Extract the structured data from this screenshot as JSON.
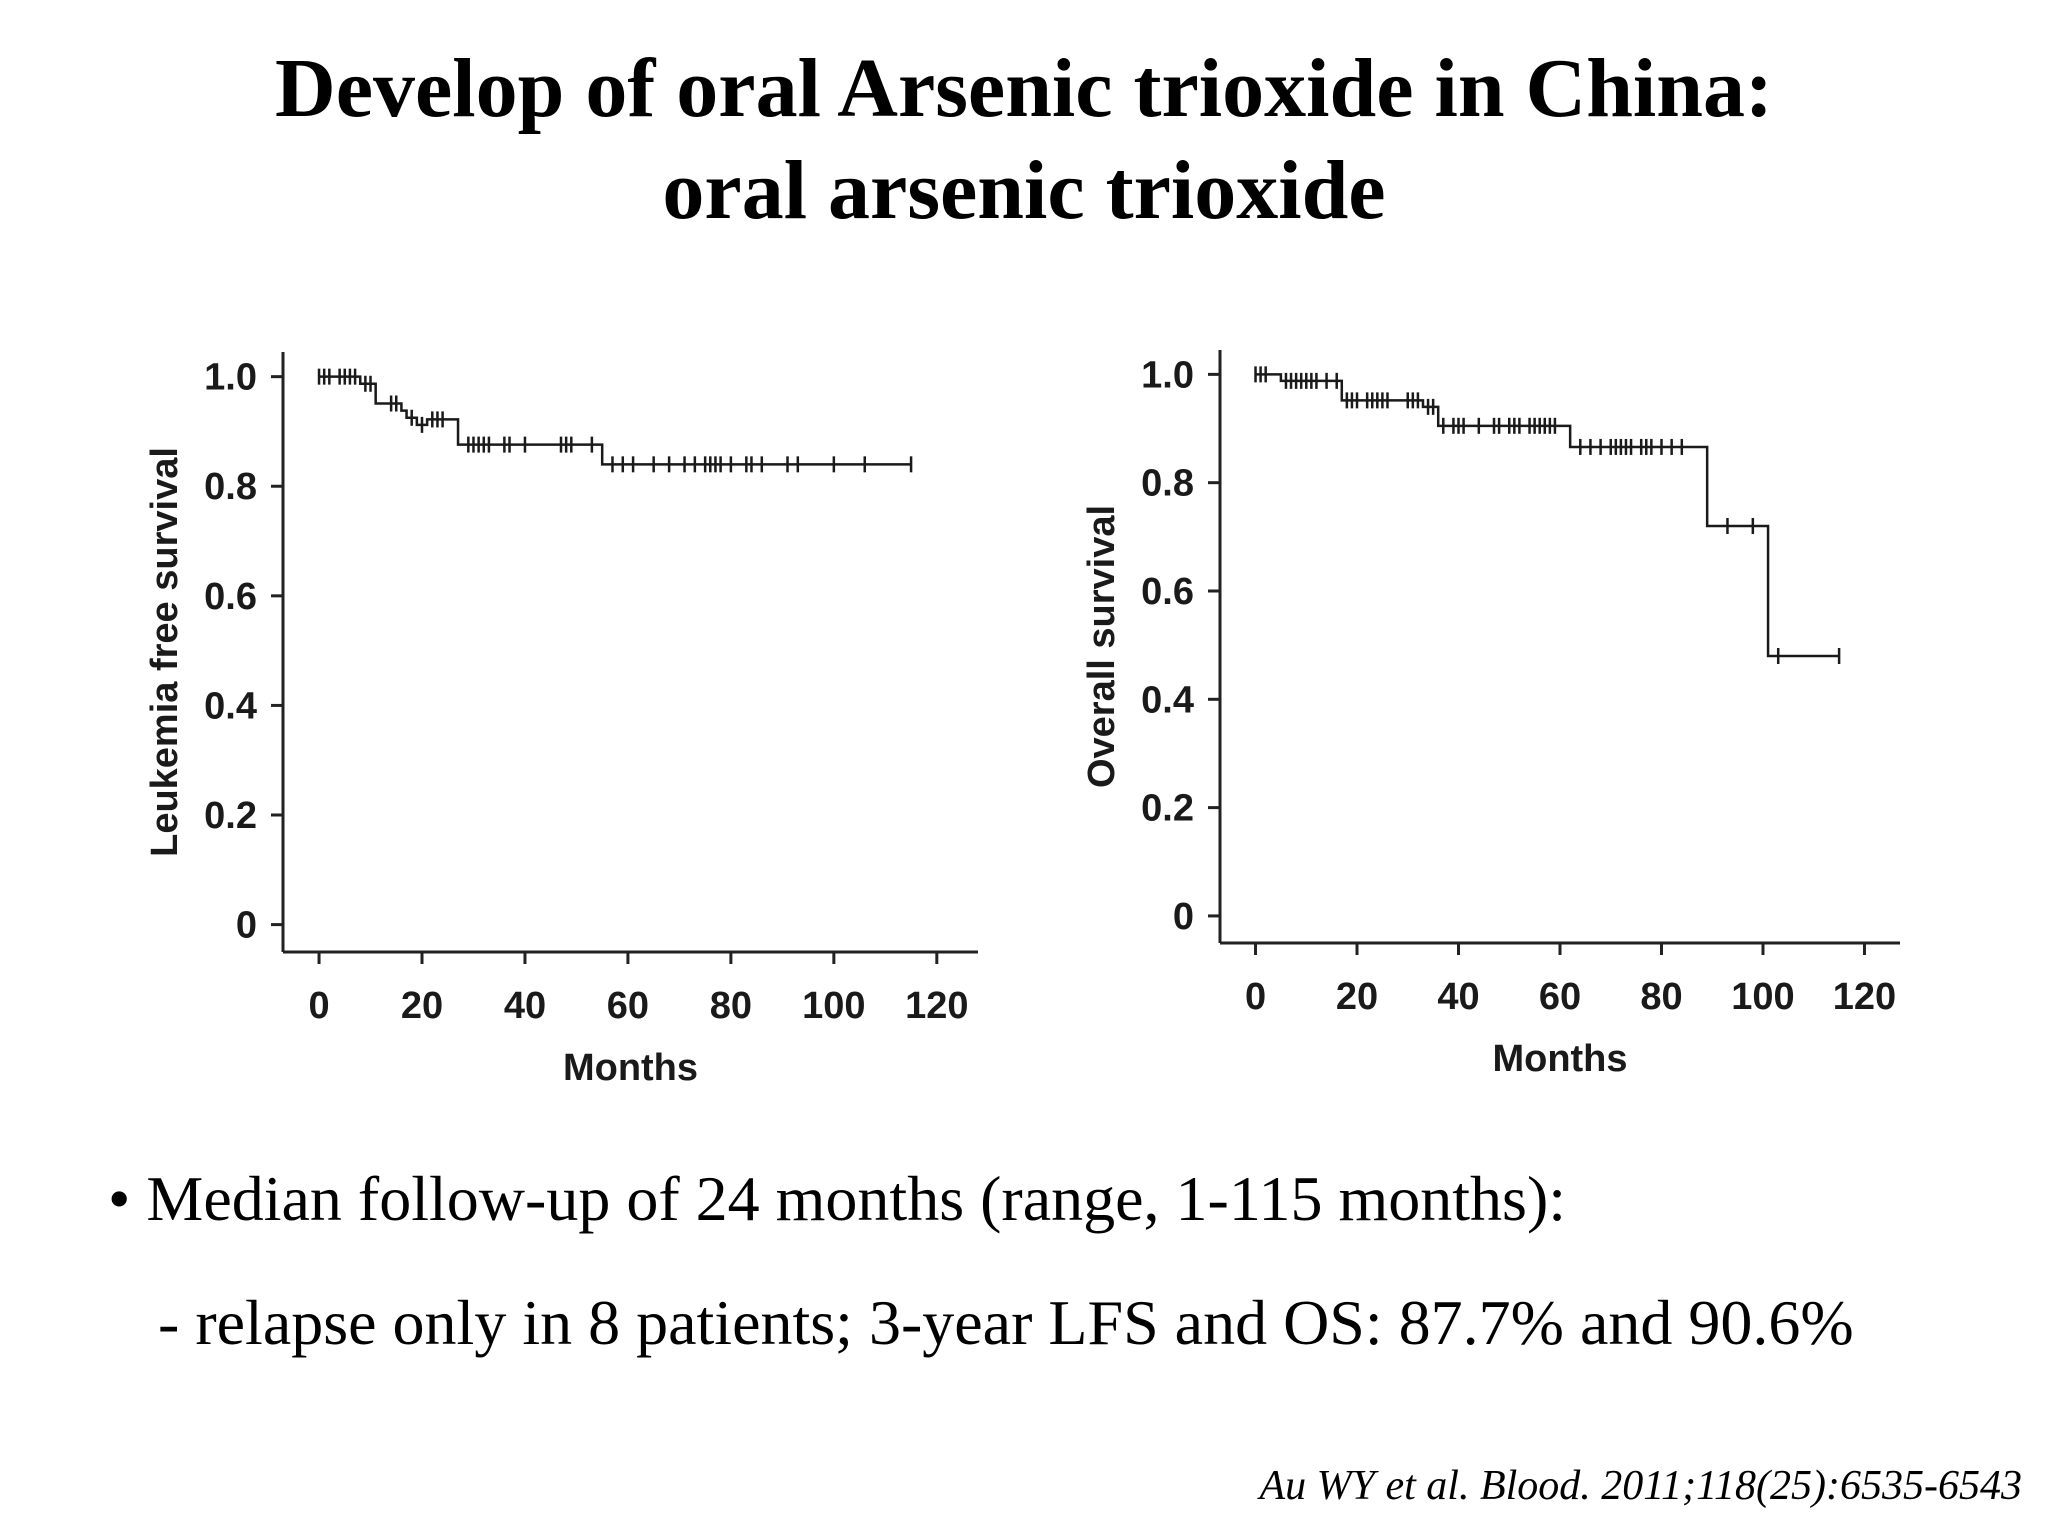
{
  "slide": {
    "title": "Develop of oral Arsenic trioxide in China: oral arsenic trioxide",
    "bullets": [
      "• Median follow-up of 24 months (range, 1-115 months):",
      "- relapse only in 8 patients; 3-year LFS and OS: 87.7% and 90.6%"
    ],
    "citation": "Au WY et al. Blood. 2011;118(25):6535-6543"
  },
  "chart_data": [
    {
      "type": "line",
      "subtype": "kaplan-meier",
      "title": "",
      "xlabel": "Months",
      "ylabel": "Leukemia free survival",
      "xlim": [
        -7,
        128
      ],
      "ylim": [
        -0.05,
        1.045
      ],
      "xticks": [
        0,
        20,
        40,
        60,
        80,
        100,
        120
      ],
      "yticks": [
        0,
        0.2,
        0.4,
        0.6,
        0.8,
        1.0
      ],
      "ytick_labels": [
        "0",
        "0.2",
        "0.4",
        "0.6",
        "0.8",
        "1.0"
      ],
      "grid": false,
      "series": [
        {
          "steps": [
            [
              0,
              1.0
            ],
            [
              8,
              0.987
            ],
            [
              11,
              0.951
            ],
            [
              16,
              0.938
            ],
            [
              17,
              0.925
            ],
            [
              19,
              0.912
            ],
            [
              21,
              0.922
            ],
            [
              27,
              0.876
            ],
            [
              55,
              0.84
            ],
            [
              115,
              0.84
            ]
          ],
          "censored": [
            [
              0,
              1.0
            ],
            [
              1,
              1.0
            ],
            [
              2,
              1.0
            ],
            [
              4,
              1.0
            ],
            [
              5,
              1.0
            ],
            [
              6,
              1.0
            ],
            [
              7,
              1.0
            ],
            [
              9,
              0.987
            ],
            [
              10,
              0.987
            ],
            [
              14,
              0.951
            ],
            [
              15,
              0.951
            ],
            [
              18,
              0.925
            ],
            [
              20,
              0.912
            ],
            [
              22,
              0.922
            ],
            [
              23,
              0.922
            ],
            [
              24,
              0.922
            ],
            [
              29,
              0.876
            ],
            [
              30,
              0.876
            ],
            [
              31,
              0.876
            ],
            [
              32,
              0.876
            ],
            [
              33,
              0.876
            ],
            [
              36,
              0.876
            ],
            [
              37,
              0.876
            ],
            [
              40,
              0.876
            ],
            [
              47,
              0.876
            ],
            [
              48,
              0.876
            ],
            [
              49,
              0.876
            ],
            [
              53,
              0.876
            ],
            [
              57,
              0.84
            ],
            [
              59,
              0.84
            ],
            [
              61,
              0.84
            ],
            [
              65,
              0.84
            ],
            [
              68,
              0.84
            ],
            [
              71,
              0.84
            ],
            [
              73,
              0.84
            ],
            [
              75,
              0.84
            ],
            [
              76,
              0.84
            ],
            [
              77,
              0.84
            ],
            [
              78,
              0.84
            ],
            [
              80,
              0.84
            ],
            [
              83,
              0.84
            ],
            [
              84,
              0.84
            ],
            [
              86,
              0.84
            ],
            [
              91,
              0.84
            ],
            [
              93,
              0.84
            ],
            [
              100,
              0.84
            ],
            [
              106,
              0.84
            ],
            [
              115,
              0.84
            ]
          ]
        }
      ]
    },
    {
      "type": "line",
      "subtype": "kaplan-meier",
      "title": "",
      "xlabel": "Months",
      "ylabel": "Overall survival",
      "xlim": [
        -7,
        127
      ],
      "ylim": [
        -0.05,
        1.045
      ],
      "xticks": [
        0,
        20,
        40,
        60,
        80,
        100,
        120
      ],
      "yticks": [
        0,
        0.2,
        0.4,
        0.6,
        0.8,
        1.0
      ],
      "ytick_labels": [
        "0",
        "0.2",
        "0.4",
        "0.6",
        "0.8",
        "1.0"
      ],
      "grid": false,
      "series": [
        {
          "steps": [
            [
              0,
              1.0
            ],
            [
              5,
              0.988
            ],
            [
              17,
              0.952
            ],
            [
              33,
              0.94
            ],
            [
              36,
              0.905
            ],
            [
              62,
              0.866
            ],
            [
              89,
              0.72
            ],
            [
              101,
              0.48
            ],
            [
              115,
              0.48
            ]
          ],
          "censored": [
            [
              0,
              1.0
            ],
            [
              1,
              1.0
            ],
            [
              2,
              1.0
            ],
            [
              6,
              0.988
            ],
            [
              7,
              0.988
            ],
            [
              8,
              0.988
            ],
            [
              9,
              0.988
            ],
            [
              10,
              0.988
            ],
            [
              11,
              0.988
            ],
            [
              12,
              0.988
            ],
            [
              14,
              0.988
            ],
            [
              16,
              0.988
            ],
            [
              18,
              0.952
            ],
            [
              19,
              0.952
            ],
            [
              20,
              0.952
            ],
            [
              22,
              0.952
            ],
            [
              23,
              0.952
            ],
            [
              24,
              0.952
            ],
            [
              25,
              0.952
            ],
            [
              26,
              0.952
            ],
            [
              30,
              0.952
            ],
            [
              31,
              0.952
            ],
            [
              32,
              0.952
            ],
            [
              34,
              0.94
            ],
            [
              35,
              0.94
            ],
            [
              37,
              0.905
            ],
            [
              39,
              0.905
            ],
            [
              40,
              0.905
            ],
            [
              41,
              0.905
            ],
            [
              44,
              0.905
            ],
            [
              47,
              0.905
            ],
            [
              48,
              0.905
            ],
            [
              50,
              0.905
            ],
            [
              51,
              0.905
            ],
            [
              52,
              0.905
            ],
            [
              54,
              0.905
            ],
            [
              55,
              0.905
            ],
            [
              56,
              0.905
            ],
            [
              57,
              0.905
            ],
            [
              58,
              0.905
            ],
            [
              59,
              0.905
            ],
            [
              64,
              0.866
            ],
            [
              66,
              0.866
            ],
            [
              68,
              0.866
            ],
            [
              70,
              0.866
            ],
            [
              71,
              0.866
            ],
            [
              72,
              0.866
            ],
            [
              73,
              0.866
            ],
            [
              74,
              0.866
            ],
            [
              76,
              0.866
            ],
            [
              77,
              0.866
            ],
            [
              78,
              0.866
            ],
            [
              80,
              0.866
            ],
            [
              82,
              0.866
            ],
            [
              84,
              0.866
            ],
            [
              93,
              0.72
            ],
            [
              98,
              0.72
            ],
            [
              103,
              0.48
            ],
            [
              115,
              0.48
            ]
          ]
        }
      ]
    }
  ]
}
